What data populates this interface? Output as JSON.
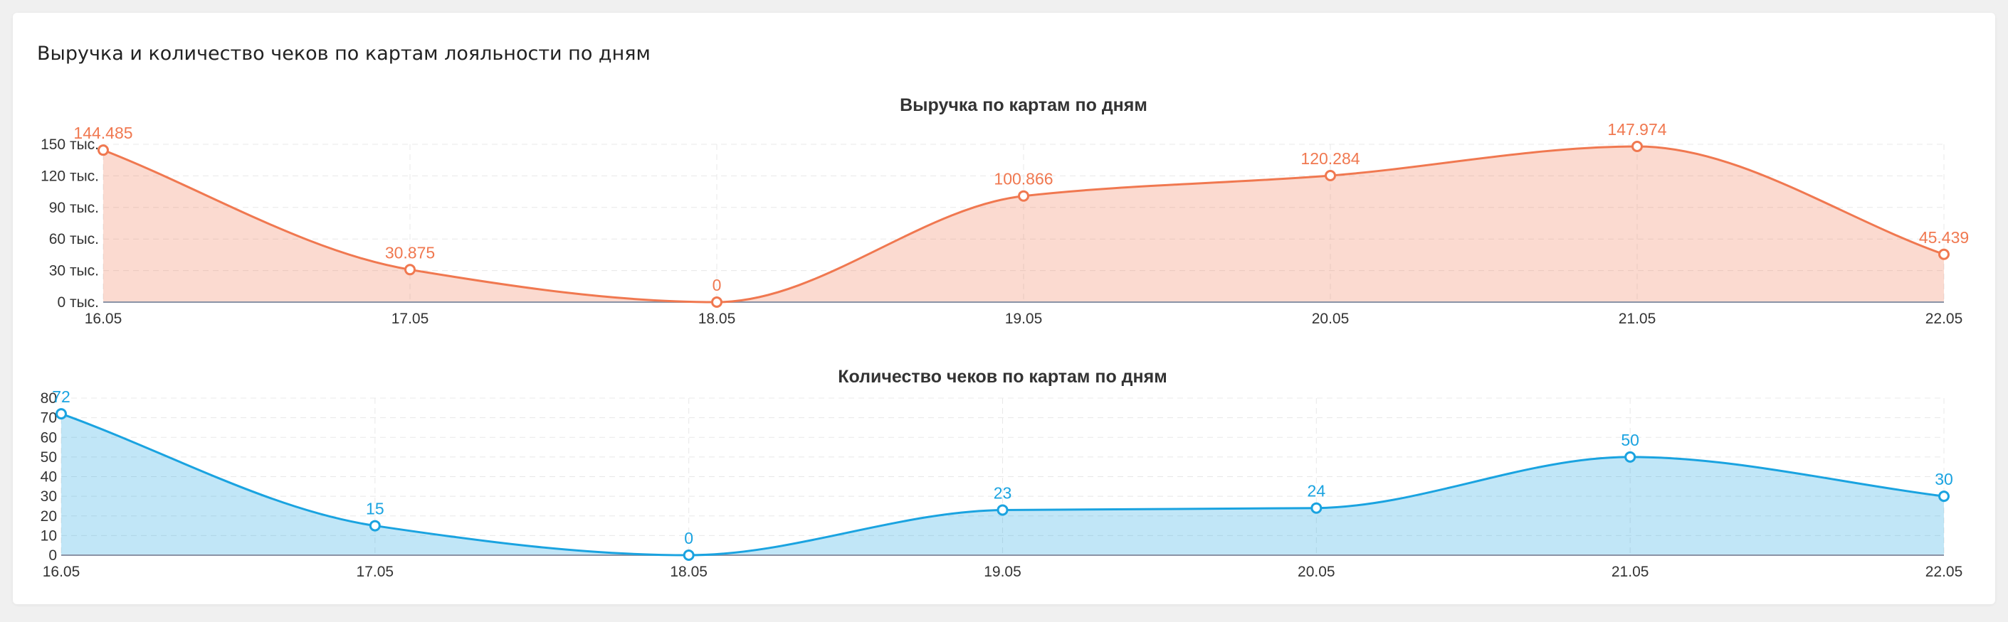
{
  "title": "Выручка и количество чеков по картам лояльности по дням",
  "chart_data": [
    {
      "type": "area",
      "title": "Выручка по картам по дням",
      "categories": [
        "16.05",
        "17.05",
        "18.05",
        "19.05",
        "20.05",
        "21.05",
        "22.05"
      ],
      "values": [
        144485,
        30875,
        0,
        100866,
        120284,
        147974,
        45439
      ],
      "value_labels": [
        "144.485",
        "30.875",
        "0",
        "100.866",
        "120.284",
        "147.974",
        "45.439"
      ],
      "color": "#f07850",
      "ylim": [
        0,
        150000
      ],
      "yticks": [
        {
          "value": 0,
          "label": "0 тыс."
        },
        {
          "value": 30000,
          "label": "30 тыс."
        },
        {
          "value": 60000,
          "label": "60 тыс."
        },
        {
          "value": 90000,
          "label": "90 тыс."
        },
        {
          "value": 120000,
          "label": "120 тыс."
        },
        {
          "value": 150000,
          "label": "150 тыс."
        }
      ],
      "grid": true
    },
    {
      "type": "area",
      "title": "Количество чеков по картам по дням",
      "categories": [
        "16.05",
        "17.05",
        "18.05",
        "19.05",
        "20.05",
        "21.05",
        "22.05"
      ],
      "values": [
        72,
        15,
        0,
        23,
        24,
        50,
        30
      ],
      "color": "#1aa3e0",
      "ylim": [
        0,
        80
      ],
      "yticks": [
        0,
        10,
        20,
        30,
        40,
        50,
        60,
        70,
        80
      ],
      "grid": true
    }
  ]
}
